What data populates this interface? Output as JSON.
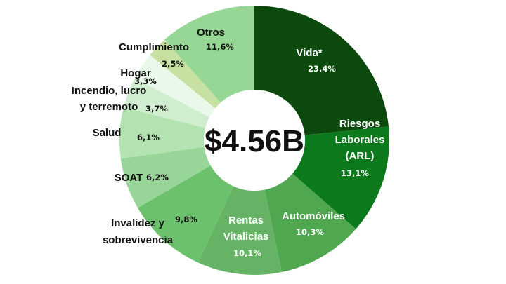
{
  "chart_data": {
    "type": "pie",
    "variant": "donut",
    "center_label": "$4.56B",
    "slices": [
      {
        "label": [
          "Vida*"
        ],
        "value": 23.4,
        "pct_label": "23,4%",
        "color": "#0b4a0c",
        "text_color": "#ffffff"
      },
      {
        "label": [
          "Riesgos",
          "Laborales",
          "(ARL)"
        ],
        "value": 13.1,
        "pct_label": "13,1%",
        "color": "#0c7a1c",
        "text_color": "#ffffff"
      },
      {
        "label": [
          "Automóviles"
        ],
        "value": 10.3,
        "pct_label": "10,3%",
        "color": "#4fa74f",
        "text_color": "#ffffff"
      },
      {
        "label": [
          "Rentas",
          "Vitalicias"
        ],
        "value": 10.1,
        "pct_label": "10,1%",
        "color": "#66b366",
        "text_color": "#ffffff"
      },
      {
        "label": [
          "Invalidez y",
          "sobrevivencia"
        ],
        "value": 9.8,
        "pct_label": "9,8%",
        "color": "#6cc26c",
        "text_color": "#111111"
      },
      {
        "label": [
          "SOAT"
        ],
        "value": 6.2,
        "pct_label": "6,2%",
        "color": "#98d598",
        "text_color": "#111111"
      },
      {
        "label": [
          "Salud"
        ],
        "value": 6.1,
        "pct_label": "6,1%",
        "color": "#b2e3b0",
        "text_color": "#111111"
      },
      {
        "label": [
          "Incendio, lucro",
          "y terremoto"
        ],
        "value": 3.7,
        "pct_label": "3,7%",
        "color": "#d0eecf",
        "text_color": "#111111"
      },
      {
        "label": [
          "Hogar"
        ],
        "value": 3.3,
        "pct_label": "3,3%",
        "color": "#e9f9e9",
        "text_color": "#111111"
      },
      {
        "label": [
          "Cumplimiento"
        ],
        "value": 2.5,
        "pct_label": "2,5%",
        "color": "#c6e1a2",
        "text_color": "#111111"
      },
      {
        "label": [
          "Otros"
        ],
        "value": 11.6,
        "pct_label": "11,6%",
        "color": "#97d796",
        "text_color": "#111111"
      }
    ]
  }
}
